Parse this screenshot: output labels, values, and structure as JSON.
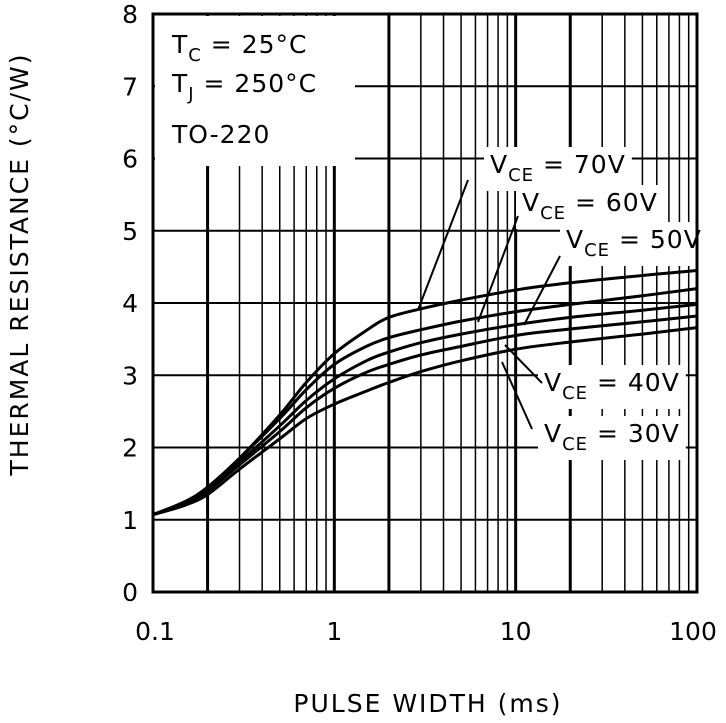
{
  "chart_data": {
    "type": "line",
    "xlabel": "PULSE WIDTH (ms)",
    "ylabel": "THERMAL RESISTANCE (°C/W)",
    "x_scale": "log",
    "xlim": [
      0.1,
      100
    ],
    "ylim": [
      0,
      8
    ],
    "x_ticks": [
      "0.1",
      "1",
      "10",
      "100"
    ],
    "y_ticks": [
      "0",
      "1",
      "2",
      "3",
      "4",
      "5",
      "6",
      "7",
      "8"
    ],
    "grid": true,
    "conditions": [
      {
        "main": "T",
        "sub": "C",
        "rest": " = 25°C"
      },
      {
        "main": "T",
        "sub": "J",
        "rest": " = 250°C"
      },
      {
        "main": "TO-220",
        "sub": "",
        "rest": ""
      }
    ],
    "series": [
      {
        "label_main": "V",
        "label_sub": "CE",
        "label_rest": " = 70V",
        "line_color": "#000000",
        "x": [
          0.1,
          0.15,
          0.2,
          0.3,
          0.5,
          0.7,
          1,
          1.5,
          2,
          3,
          5,
          10,
          20,
          50,
          100
        ],
        "y": [
          1.07,
          1.25,
          1.45,
          1.85,
          2.45,
          2.9,
          3.3,
          3.62,
          3.8,
          3.92,
          4.04,
          4.18,
          4.28,
          4.38,
          4.45
        ]
      },
      {
        "label_main": "V",
        "label_sub": "CE",
        "label_rest": " = 60V",
        "line_color": "#000000",
        "x": [
          0.1,
          0.15,
          0.2,
          0.3,
          0.5,
          0.7,
          1,
          1.5,
          2,
          3,
          5,
          10,
          20,
          50,
          100
        ],
        "y": [
          1.07,
          1.25,
          1.45,
          1.85,
          2.4,
          2.8,
          3.15,
          3.4,
          3.52,
          3.63,
          3.75,
          3.88,
          3.98,
          4.1,
          4.2
        ]
      },
      {
        "label_main": "V",
        "label_sub": "CE",
        "label_rest": " = 50V",
        "line_color": "#000000",
        "x": [
          0.1,
          0.15,
          0.2,
          0.3,
          0.5,
          0.7,
          1,
          1.5,
          2,
          3,
          5,
          10,
          20,
          50,
          100
        ],
        "y": [
          1.07,
          1.23,
          1.42,
          1.8,
          2.3,
          2.65,
          2.95,
          3.2,
          3.32,
          3.45,
          3.57,
          3.7,
          3.8,
          3.9,
          3.98
        ]
      },
      {
        "label_main": "V",
        "label_sub": "CE",
        "label_rest": " = 40V",
        "line_color": "#000000",
        "x": [
          0.1,
          0.15,
          0.2,
          0.3,
          0.5,
          0.7,
          1,
          1.5,
          2,
          3,
          5,
          10,
          20,
          50,
          100
        ],
        "y": [
          1.07,
          1.22,
          1.4,
          1.76,
          2.22,
          2.55,
          2.82,
          3.04,
          3.15,
          3.28,
          3.4,
          3.55,
          3.64,
          3.74,
          3.82
        ]
      },
      {
        "label_main": "V",
        "label_sub": "CE",
        "label_rest": " = 30V",
        "line_color": "#000000",
        "x": [
          0.1,
          0.15,
          0.2,
          0.3,
          0.5,
          0.7,
          1,
          1.5,
          2,
          3,
          5,
          10,
          20,
          50,
          100
        ],
        "y": [
          1.07,
          1.2,
          1.35,
          1.7,
          2.12,
          2.4,
          2.6,
          2.78,
          2.9,
          3.05,
          3.2,
          3.36,
          3.46,
          3.57,
          3.66
        ]
      }
    ]
  }
}
